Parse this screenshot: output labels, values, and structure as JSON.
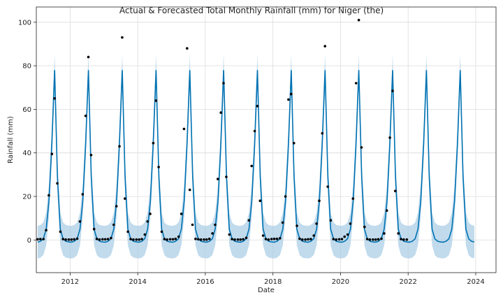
{
  "chart_data": {
    "type": "line",
    "title": "Actual & Forecasted Total Monthly Rainfall (mm) for Niger (the)",
    "xlabel": "Date",
    "ylabel": "Rainfall (mm)",
    "xlim": [
      2011.0,
      2024.6
    ],
    "ylim": [
      -15,
      107
    ],
    "x_ticks": [
      2012,
      2014,
      2016,
      2018,
      2020,
      2022,
      2024
    ],
    "y_ticks": [
      0,
      20,
      40,
      60,
      80,
      100
    ],
    "grid": true,
    "colors": {
      "forecast": "#0072B2",
      "interval": "#A6CCE6",
      "actual": "#000000"
    },
    "series": [
      {
        "kind": "forecast",
        "monthly_profile": [
          -1.0,
          -0.6,
          0.6,
          5.0,
          18.0,
          44.0,
          78.0,
          29.0,
          5.0,
          0.5,
          -0.6,
          -0.9
        ],
        "year_start": 2011,
        "year_end": 2023,
        "interval_halfwidth": 7.5
      },
      {
        "kind": "actual",
        "points": [
          [
            2011.04,
            0.3
          ],
          [
            2011.12,
            0.4
          ],
          [
            2011.21,
            0.4
          ],
          [
            2011.29,
            4.5
          ],
          [
            2011.37,
            20.5
          ],
          [
            2011.46,
            39.5
          ],
          [
            2011.54,
            65.0
          ],
          [
            2011.62,
            26.0
          ],
          [
            2011.71,
            3.8
          ],
          [
            2011.79,
            0.4
          ],
          [
            2011.87,
            0.2
          ],
          [
            2011.96,
            0.2
          ],
          [
            2012.04,
            0.2
          ],
          [
            2012.12,
            0.3
          ],
          [
            2012.21,
            0.6
          ],
          [
            2012.29,
            8.5
          ],
          [
            2012.37,
            21.0
          ],
          [
            2012.46,
            57.0
          ],
          [
            2012.54,
            84.0
          ],
          [
            2012.62,
            39.0
          ],
          [
            2012.71,
            5.0
          ],
          [
            2012.79,
            0.5
          ],
          [
            2012.87,
            0.2
          ],
          [
            2012.96,
            0.3
          ],
          [
            2013.04,
            0.3
          ],
          [
            2013.12,
            0.4
          ],
          [
            2013.21,
            0.9
          ],
          [
            2013.29,
            7.0
          ],
          [
            2013.37,
            15.5
          ],
          [
            2013.46,
            43.0
          ],
          [
            2013.54,
            93.0
          ],
          [
            2013.62,
            19.0
          ],
          [
            2013.71,
            3.8
          ],
          [
            2013.79,
            0.4
          ],
          [
            2013.87,
            0.2
          ],
          [
            2013.96,
            0.2
          ],
          [
            2014.04,
            0.2
          ],
          [
            2014.12,
            0.4
          ],
          [
            2014.21,
            2.5
          ],
          [
            2014.29,
            8.5
          ],
          [
            2014.37,
            12.0
          ],
          [
            2014.46,
            44.5
          ],
          [
            2014.54,
            64.0
          ],
          [
            2014.62,
            33.5
          ],
          [
            2014.71,
            3.8
          ],
          [
            2014.79,
            0.4
          ],
          [
            2014.87,
            0.2
          ],
          [
            2014.96,
            0.3
          ],
          [
            2015.04,
            0.3
          ],
          [
            2015.12,
            0.5
          ],
          [
            2015.21,
            1.5
          ],
          [
            2015.29,
            12.0
          ],
          [
            2015.37,
            51.0
          ],
          [
            2015.46,
            88.0
          ],
          [
            2015.54,
            23.0
          ],
          [
            2015.62,
            7.0
          ],
          [
            2015.71,
            0.5
          ],
          [
            2015.79,
            0.3
          ],
          [
            2015.87,
            0.2
          ],
          [
            2015.96,
            0.2
          ],
          [
            2016.04,
            0.2
          ],
          [
            2016.12,
            0.5
          ],
          [
            2016.21,
            3.0
          ],
          [
            2016.29,
            7.0
          ],
          [
            2016.37,
            28.0
          ],
          [
            2016.46,
            58.5
          ],
          [
            2016.54,
            72.0
          ],
          [
            2016.62,
            29.0
          ],
          [
            2016.71,
            2.5
          ],
          [
            2016.79,
            0.4
          ],
          [
            2016.87,
            0.2
          ],
          [
            2016.96,
            0.2
          ],
          [
            2017.04,
            0.2
          ],
          [
            2017.12,
            0.3
          ],
          [
            2017.21,
            1.0
          ],
          [
            2017.29,
            9.0
          ],
          [
            2017.37,
            34.0
          ],
          [
            2017.46,
            50.0
          ],
          [
            2017.54,
            61.5
          ],
          [
            2017.62,
            18.0
          ],
          [
            2017.71,
            2.0
          ],
          [
            2017.79,
            0.4
          ],
          [
            2017.87,
            0.2
          ],
          [
            2017.96,
            0.4
          ],
          [
            2018.04,
            0.5
          ],
          [
            2018.12,
            0.5
          ],
          [
            2018.21,
            0.8
          ],
          [
            2018.29,
            8.0
          ],
          [
            2018.37,
            20.0
          ],
          [
            2018.46,
            64.5
          ],
          [
            2018.54,
            67.0
          ],
          [
            2018.62,
            44.5
          ],
          [
            2018.71,
            6.5
          ],
          [
            2018.79,
            0.6
          ],
          [
            2018.87,
            0.2
          ],
          [
            2018.96,
            0.2
          ],
          [
            2019.04,
            0.3
          ],
          [
            2019.12,
            0.4
          ],
          [
            2019.21,
            2.0
          ],
          [
            2019.29,
            7.5
          ],
          [
            2019.37,
            18.0
          ],
          [
            2019.46,
            49.0
          ],
          [
            2019.54,
            89.0
          ],
          [
            2019.62,
            24.5
          ],
          [
            2019.71,
            9.0
          ],
          [
            2019.79,
            0.4
          ],
          [
            2019.87,
            0.2
          ],
          [
            2019.96,
            0.3
          ],
          [
            2020.04,
            0.4
          ],
          [
            2020.12,
            1.5
          ],
          [
            2020.21,
            2.5
          ],
          [
            2020.29,
            7.5
          ],
          [
            2020.37,
            19.0
          ],
          [
            2020.46,
            72.0
          ],
          [
            2020.54,
            101.0
          ],
          [
            2020.62,
            42.5
          ],
          [
            2020.71,
            6.0
          ],
          [
            2020.79,
            0.4
          ],
          [
            2020.87,
            0.2
          ],
          [
            2020.96,
            0.2
          ],
          [
            2021.04,
            0.2
          ],
          [
            2021.12,
            0.3
          ],
          [
            2021.21,
            0.6
          ],
          [
            2021.29,
            3.0
          ],
          [
            2021.37,
            13.5
          ],
          [
            2021.46,
            47.0
          ],
          [
            2021.54,
            68.5
          ],
          [
            2021.62,
            22.5
          ],
          [
            2021.71,
            3.0
          ],
          [
            2021.79,
            0.4
          ],
          [
            2021.87,
            0.2
          ],
          [
            2021.96,
            0.2
          ]
        ]
      }
    ]
  }
}
